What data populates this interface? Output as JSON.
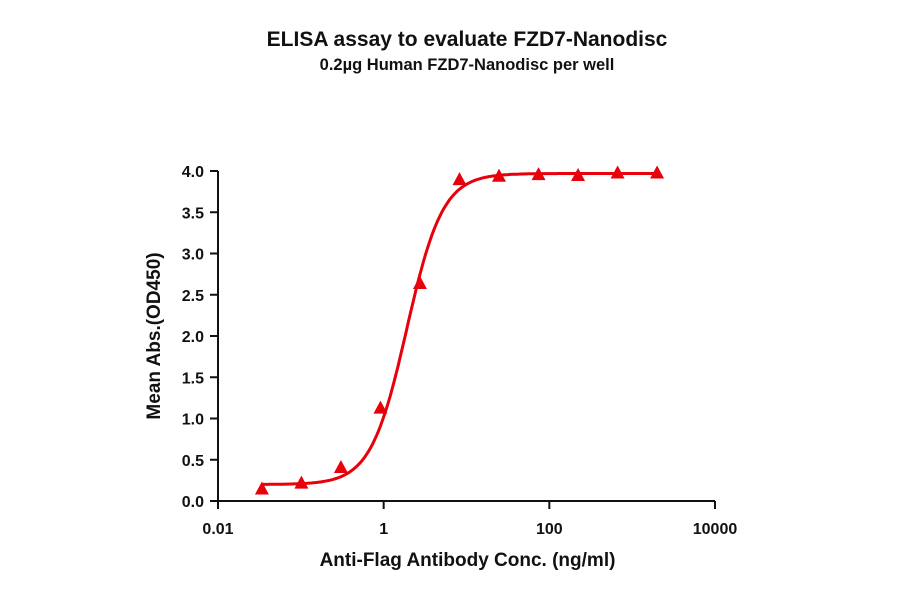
{
  "title": "ELISA assay to evaluate FZD7-Nanodisc",
  "subtitle": "0.2µg Human FZD7-Nanodisc per well",
  "colors": {
    "series": "#e8000b",
    "axis": "#111111"
  },
  "chart_data": {
    "type": "scatter",
    "title": "ELISA assay to evaluate FZD7-Nanodisc",
    "subtitle": "0.2µg Human FZD7-Nanodisc per well",
    "xlabel": "Anti-Flag Antibody Conc. (ng/ml)",
    "ylabel": "Mean Abs.(OD450)",
    "xscale": "log",
    "xlim": [
      0.01,
      10000
    ],
    "ylim": [
      0.0,
      4.0
    ],
    "xticks": [
      "0.01",
      "1",
      "100",
      "10000"
    ],
    "yticks": [
      "0.0",
      "0.5",
      "1.0",
      "1.5",
      "2.0",
      "2.5",
      "3.0",
      "3.5",
      "4.0"
    ],
    "grid": false,
    "legend": null,
    "marker": "triangle",
    "fit": "4PL sigmoidal curve",
    "series": [
      {
        "name": "FZD7-Nanodisc",
        "x": [
          0.0339,
          0.1016,
          0.3048,
          0.9145,
          2.743,
          8.23,
          24.69,
          74.07,
          222.2,
          666.7,
          2000
        ],
        "y": [
          0.14,
          0.21,
          0.4,
          1.12,
          2.63,
          3.89,
          3.93,
          3.95,
          3.94,
          3.97,
          3.97
        ]
      }
    ],
    "fit_params": {
      "bottom": 0.2,
      "top": 3.97,
      "ec50": 1.9,
      "hill": 2.0
    }
  },
  "axes": {
    "xticks": [
      "0.01",
      "1",
      "100",
      "10000"
    ],
    "yticks": [
      "0.0",
      "0.5",
      "1.0",
      "1.5",
      "2.0",
      "2.5",
      "3.0",
      "3.5",
      "4.0"
    ],
    "xlabel": "Anti-Flag Antibody Conc. (ng/ml)",
    "ylabel": "Mean Abs.(OD450)"
  }
}
